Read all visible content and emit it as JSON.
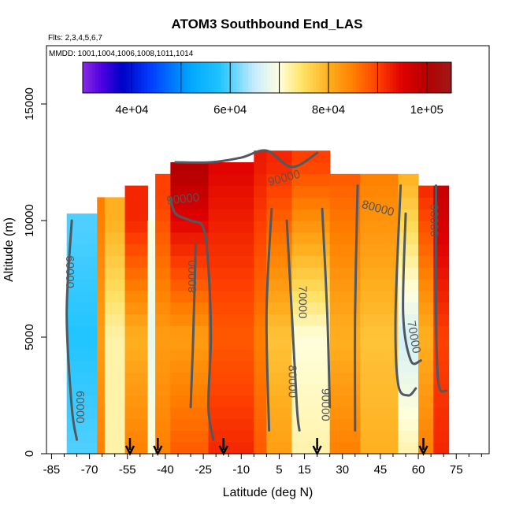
{
  "chart_data": {
    "type": "heatmap",
    "title": "ATOM3 Southbound End_LAS",
    "subtitle_flights": "Flts: 2,3,4,5,6,7",
    "subtitle_dates": "MMDD: 1001,1004,1006,1008,1011,1014",
    "xlabel": "Latitude (deg N)",
    "ylabel": "Altitude (m)",
    "xlim": [
      -87,
      88
    ],
    "ylim": [
      0,
      17500
    ],
    "x_tick_labels": [
      "-85",
      "-70",
      "-55",
      "-40",
      "-25",
      "-10",
      "5",
      "15",
      "30",
      "45",
      "60",
      "75"
    ],
    "x_tick_values": [
      -85,
      -70,
      -55,
      -40,
      -25,
      -10,
      5,
      15,
      30,
      45,
      60,
      75
    ],
    "x_minor_ticks": [
      -80,
      -75,
      -65,
      -60,
      -50,
      -45,
      -35,
      -30,
      -20,
      -15,
      -5,
      0,
      10,
      20,
      25,
      35,
      40,
      50,
      55,
      65,
      70,
      80,
      85
    ],
    "y_tick_labels": [
      "0",
      "5000",
      "10000",
      "15000"
    ],
    "y_tick_values": [
      0,
      5000,
      10000,
      15000
    ],
    "colorbar": {
      "range": [
        30000,
        105000
      ],
      "breaks": [
        30000,
        35000,
        40000,
        45000,
        50000,
        55000,
        60000,
        65000,
        70000,
        75000,
        80000,
        85000,
        90000,
        95000,
        100000,
        105000
      ],
      "tick_labels": [
        "4e+04",
        "6e+04",
        "8e+04",
        "1e+05"
      ],
      "tick_values": [
        40000,
        60000,
        80000,
        100000
      ],
      "colors": [
        [
          30000,
          "#8a2be2"
        ],
        [
          34000,
          "#4b00e0"
        ],
        [
          38000,
          "#0000c8"
        ],
        [
          44000,
          "#0040ff"
        ],
        [
          52000,
          "#00a8ff"
        ],
        [
          58000,
          "#20c4ff"
        ],
        [
          65000,
          "#c8ecff"
        ],
        [
          70000,
          "#ffffdc"
        ],
        [
          75000,
          "#ffe060"
        ],
        [
          80000,
          "#ffb020"
        ],
        [
          85000,
          "#ff8000"
        ],
        [
          90000,
          "#ff4000"
        ],
        [
          95000,
          "#e00000"
        ],
        [
          100000,
          "#b40000"
        ],
        [
          105000,
          "#a01818"
        ]
      ]
    },
    "profiles": [
      {
        "lat_range": [
          -79,
          -67
        ],
        "top": 10300,
        "values": [
          [
            0,
            60000
          ],
          [
            5000,
            58000
          ],
          [
            10000,
            60000
          ]
        ]
      },
      {
        "lat_range": [
          -67,
          -64
        ],
        "top": 11000,
        "values": [
          [
            0,
            85000
          ],
          [
            5000,
            82000
          ],
          [
            10000,
            85000
          ]
        ]
      },
      {
        "lat_range": [
          -64,
          -56
        ],
        "top": 11000,
        "values": [
          [
            0,
            72000
          ],
          [
            5000,
            72000
          ],
          [
            10000,
            80000
          ]
        ]
      },
      {
        "lat_range": [
          -56,
          -47
        ],
        "top": 11500,
        "values": [
          [
            0,
            85000
          ],
          [
            5000,
            80000
          ],
          [
            10000,
            92000
          ]
        ]
      },
      {
        "lat_range": [
          -47,
          -44
        ],
        "top": 10000,
        "values": [
          [
            0,
            70000
          ],
          [
            5000,
            68000
          ],
          [
            10000,
            70000
          ]
        ]
      },
      {
        "lat_range": [
          -44,
          -38
        ],
        "top": 12000,
        "values": [
          [
            0,
            85000
          ],
          [
            5000,
            82000
          ],
          [
            11000,
            90000
          ]
        ]
      },
      {
        "lat_range": [
          -38,
          -23
        ],
        "top": 12500,
        "values": [
          [
            0,
            88000
          ],
          [
            5000,
            82000
          ],
          [
            12000,
            100000
          ]
        ]
      },
      {
        "lat_range": [
          -23,
          -5
        ],
        "top": 12500,
        "values": [
          [
            0,
            92000
          ],
          [
            5000,
            88000
          ],
          [
            12500,
            95000
          ]
        ]
      },
      {
        "lat_range": [
          -5,
          0
        ],
        "top": 13000,
        "values": [
          [
            0,
            88000
          ],
          [
            5000,
            85000
          ],
          [
            12500,
            93000
          ]
        ]
      },
      {
        "lat_range": [
          0,
          10
        ],
        "top": 13000,
        "values": [
          [
            0,
            82000
          ],
          [
            5000,
            78000
          ],
          [
            12500,
            92000
          ]
        ]
      },
      {
        "lat_range": [
          10,
          25
        ],
        "top": 13000,
        "values": [
          [
            0,
            72000
          ],
          [
            5000,
            70000
          ],
          [
            12500,
            90000
          ]
        ]
      },
      {
        "lat_range": [
          25,
          37
        ],
        "top": 12000,
        "values": [
          [
            0,
            85000
          ],
          [
            5000,
            80000
          ],
          [
            12000,
            88000
          ]
        ]
      },
      {
        "lat_range": [
          37,
          52
        ],
        "top": 12000,
        "values": [
          [
            0,
            80000
          ],
          [
            5000,
            78000
          ],
          [
            12000,
            85000
          ]
        ]
      },
      {
        "lat_range": [
          52,
          60
        ],
        "top": 12000,
        "values": [
          [
            0,
            72000
          ],
          [
            5000,
            66000
          ],
          [
            12000,
            80000
          ]
        ]
      },
      {
        "lat_range": [
          60,
          66
        ],
        "top": 11500,
        "values": [
          [
            0,
            85000
          ],
          [
            5000,
            80000
          ],
          [
            11500,
            92000
          ]
        ]
      },
      {
        "lat_range": [
          66,
          72
        ],
        "top": 11500,
        "values": [
          [
            0,
            92000
          ],
          [
            5000,
            90000
          ],
          [
            11500,
            98000
          ]
        ]
      }
    ],
    "contours": [
      {
        "level": 60000,
        "points": [
          [
            -77,
            10000
          ],
          [
            -79,
            6000
          ],
          [
            -77,
            2000
          ],
          [
            -75,
            600
          ]
        ]
      },
      {
        "level": 90000,
        "points": [
          [
            -36,
            12500
          ],
          [
            -22,
            12500
          ],
          [
            -10,
            12700
          ],
          [
            0,
            13000
          ],
          [
            10,
            12300
          ],
          [
            20,
            12900
          ]
        ]
      },
      {
        "level": 90000,
        "points": [
          [
            -38,
            11000
          ],
          [
            -36,
            10300
          ],
          [
            -30,
            10000
          ],
          [
            -25,
            9700
          ],
          [
            -23,
            8000
          ],
          [
            -22,
            5000
          ],
          [
            -23,
            2000
          ],
          [
            -21,
            600
          ]
        ]
      },
      {
        "level": 80000,
        "points": [
          [
            -28,
            9000
          ],
          [
            -29,
            5000
          ],
          [
            -30,
            2000
          ]
        ]
      },
      {
        "level": 80000,
        "points": [
          [
            2,
            10500
          ],
          [
            0,
            6000
          ],
          [
            1,
            1000
          ]
        ]
      },
      {
        "level": 70000,
        "points": [
          [
            8,
            10000
          ],
          [
            10,
            6000
          ],
          [
            12,
            2000
          ],
          [
            13,
            1000
          ]
        ]
      },
      {
        "level": 70000,
        "points": [
          [
            22,
            10500
          ],
          [
            24,
            6000
          ],
          [
            25,
            2000
          ]
        ]
      },
      {
        "level": 80000,
        "points": [
          [
            36,
            11500
          ],
          [
            35,
            6000
          ],
          [
            35,
            1000
          ]
        ]
      },
      {
        "level": 90000,
        "points": [
          [
            53,
            11500
          ],
          [
            51,
            6000
          ],
          [
            52,
            3000
          ],
          [
            56,
            2500
          ],
          [
            59,
            2800
          ]
        ]
      },
      {
        "level": 70000,
        "points": [
          [
            55,
            10300
          ],
          [
            54,
            6000
          ],
          [
            57,
            4000
          ],
          [
            61,
            4000
          ]
        ]
      },
      {
        "level": 90000,
        "points": [
          [
            67,
            11500
          ],
          [
            67,
            6000
          ],
          [
            68,
            3000
          ],
          [
            71,
            2700
          ]
        ]
      }
    ],
    "contour_labels": [
      {
        "text": "60000",
        "x": -78,
        "y": 7800,
        "angle": 90
      },
      {
        "text": "60000",
        "x": -74,
        "y": 2000,
        "angle": 90
      },
      {
        "text": "90000",
        "x": -33,
        "y": 10900,
        "angle": -6
      },
      {
        "text": "80000",
        "x": -29,
        "y": 7600,
        "angle": -90
      },
      {
        "text": "90000",
        "x": 7,
        "y": 11800,
        "angle": -15
      },
      {
        "text": "70000",
        "x": 14,
        "y": 6500,
        "angle": 90
      },
      {
        "text": "80000",
        "x": 10,
        "y": 3100,
        "angle": 90
      },
      {
        "text": "90000",
        "x": 23,
        "y": 2100,
        "angle": 90
      },
      {
        "text": "80000",
        "x": 44,
        "y": 10500,
        "angle": 15
      },
      {
        "text": "90000",
        "x": 66,
        "y": 10000,
        "angle": 90
      },
      {
        "text": "70000",
        "x": 58,
        "y": 5000,
        "angle": 80
      }
    ],
    "arrows": [
      -54,
      -43,
      -17,
      20,
      62
    ]
  }
}
